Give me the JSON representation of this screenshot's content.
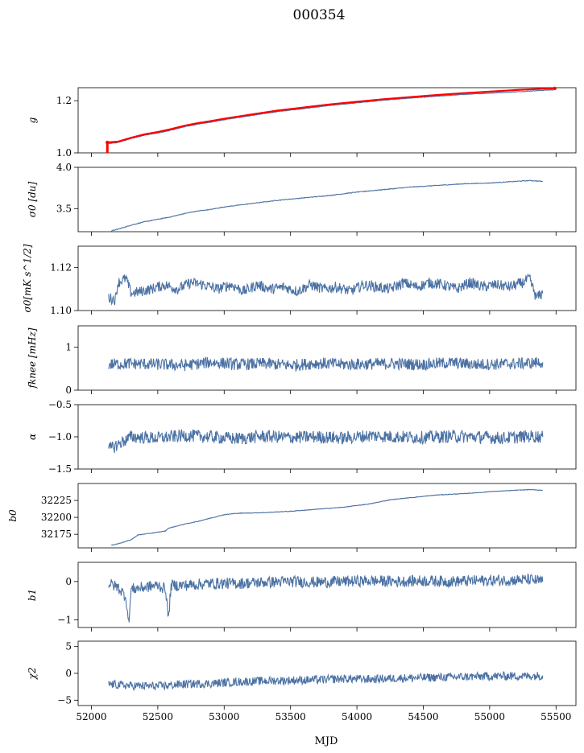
{
  "figure": {
    "title": "000354",
    "xlabel": "MJD",
    "line_color": "#4c72a4",
    "highlight_color": "#ff0000"
  },
  "chart_data": {
    "type": "line",
    "x_range": [
      51900,
      55650
    ],
    "x_ticks": [
      52000,
      52500,
      53000,
      53500,
      54000,
      54500,
      55000,
      55500
    ],
    "x_tick_labels": [
      "52000",
      "52500",
      "53000",
      "53500",
      "54000",
      "54500",
      "55000",
      "55500"
    ],
    "panels": [
      {
        "ylabel": "g",
        "ylim": [
          1.0,
          1.25
        ],
        "yticks": [
          1.0,
          1.2
        ],
        "ytick_labels": [
          "1.0",
          "1.2"
        ],
        "series": [
          {
            "x": [
              52130,
              52200,
              52300,
              52400,
              52500,
              52600,
              52700,
              52800,
              52900,
              53000,
              53200,
              53400,
              53600,
              53800,
              54000,
              54200,
              54400,
              54600,
              54800,
              55000,
              55200,
              55400,
              55480
            ],
            "y": [
              1.035,
              1.04,
              1.055,
              1.068,
              1.076,
              1.087,
              1.1,
              1.11,
              1.118,
              1.127,
              1.143,
              1.158,
              1.17,
              1.182,
              1.192,
              1.202,
              1.21,
              1.217,
              1.224,
              1.229,
              1.234,
              1.24,
              1.242
            ]
          }
        ],
        "highlight": {
          "x": [
            52120,
            52200,
            52300,
            52400,
            52500,
            52600,
            52700,
            52800,
            52900,
            53000,
            53200,
            53400,
            53600,
            53800,
            54000,
            54200,
            54400,
            54600,
            54800,
            55000,
            55200,
            55400,
            55490
          ],
          "y": [
            1.04,
            1.043,
            1.058,
            1.071,
            1.08,
            1.091,
            1.104,
            1.114,
            1.122,
            1.131,
            1.147,
            1.162,
            1.174,
            1.186,
            1.196,
            1.206,
            1.214,
            1.222,
            1.229,
            1.235,
            1.241,
            1.246,
            1.247
          ],
          "drop_x": 52120,
          "drop_y": [
            1.0,
            1.04
          ]
        }
      },
      {
        "ylabel": "σ0 [du]",
        "ylim": [
          3.22,
          4.0
        ],
        "yticks": [
          3.5,
          4.0
        ],
        "ytick_labels": [
          "3.5",
          "4.0"
        ],
        "series": [
          {
            "x": [
              52150,
              52200,
              52300,
              52400,
              52500,
              52600,
              52700,
              52800,
              52900,
              53000,
              53200,
              53400,
              53600,
              53800,
              54000,
              54200,
              54400,
              54600,
              54800,
              55000,
              55200,
              55300,
              55400
            ],
            "y": [
              3.23,
              3.25,
              3.3,
              3.34,
              3.37,
              3.4,
              3.44,
              3.47,
              3.49,
              3.52,
              3.56,
              3.6,
              3.63,
              3.66,
              3.7,
              3.73,
              3.76,
              3.78,
              3.8,
              3.81,
              3.83,
              3.84,
              3.83
            ]
          }
        ]
      },
      {
        "ylabel": "σ0[mK s^1/2]",
        "ylim": [
          1.1,
          1.13
        ],
        "yticks": [
          1.1,
          1.12
        ],
        "ytick_labels": [
          "1.10",
          "1.12"
        ],
        "series": [
          {
            "x": [
              52130,
              52180,
              52200,
              52260,
              52300,
              52380,
              52450,
              52550,
              52650,
              52750,
              52850,
              52950,
              53050,
              53150,
              53250,
              53350,
              53450,
              53550,
              53650,
              53750,
              53850,
              53950,
              54050,
              54150,
              54250,
              54350,
              54450,
              54550,
              54650,
              54750,
              54850,
              54950,
              55050,
              55150,
              55250,
              55300,
              55350,
              55400
            ],
            "y": [
              1.106,
              1.105,
              1.113,
              1.115,
              1.108,
              1.109,
              1.11,
              1.112,
              1.11,
              1.113,
              1.112,
              1.11,
              1.112,
              1.109,
              1.112,
              1.11,
              1.111,
              1.109,
              1.112,
              1.11,
              1.111,
              1.109,
              1.112,
              1.111,
              1.11,
              1.113,
              1.111,
              1.113,
              1.112,
              1.11,
              1.113,
              1.111,
              1.112,
              1.111,
              1.113,
              1.115,
              1.106,
              1.108
            ]
          }
        ]
      },
      {
        "ylabel": "fknee [mHz]",
        "ylim": [
          0,
          1.5
        ],
        "yticks": [
          0,
          1
        ],
        "ytick_labels": [
          "0",
          "1"
        ],
        "series": [
          {
            "x": [
              52130,
              52300,
              52500,
              52700,
              52900,
              53100,
              53300,
              53500,
              53700,
              53900,
              54100,
              54300,
              54500,
              54700,
              54900,
              55100,
              55300,
              55400
            ],
            "y": [
              0.6,
              0.62,
              0.6,
              0.58,
              0.65,
              0.6,
              0.62,
              0.58,
              0.63,
              0.6,
              0.61,
              0.62,
              0.6,
              0.64,
              0.6,
              0.61,
              0.63,
              0.65
            ]
          }
        ]
      },
      {
        "ylabel": "α",
        "ylim": [
          -1.5,
          -0.5
        ],
        "yticks": [
          -1.5,
          -1.0,
          -0.5
        ],
        "ytick_labels": [
          "−1.5",
          "−1.0",
          "−0.5"
        ],
        "series": [
          {
            "x": [
              52130,
              52300,
              52500,
              52700,
              52900,
              53100,
              53300,
              53500,
              53700,
              53900,
              54100,
              54300,
              54500,
              54700,
              54900,
              55100,
              55300,
              55400
            ],
            "y": [
              -1.2,
              -1.0,
              -1.02,
              -0.98,
              -1.0,
              -1.03,
              -0.99,
              -1.01,
              -1.0,
              -1.02,
              -0.98,
              -1.0,
              -1.01,
              -0.99,
              -1.0,
              -1.02,
              -0.99,
              -1.0
            ]
          }
        ]
      },
      {
        "ylabel": "b0",
        "ylim": [
          32155,
          32250
        ],
        "yticks": [
          32175,
          32200,
          32225
        ],
        "ytick_labels": [
          "32175",
          "32200",
          "32225"
        ],
        "series": [
          {
            "x": [
              52150,
              52200,
              52300,
              52350,
              52500,
              52560,
              52580,
              52600,
              52700,
              52800,
              52900,
              53000,
              53100,
              53300,
              53500,
              53700,
              53900,
              54100,
              54250,
              54400,
              54600,
              54800,
              54950,
              55000,
              55200,
              55300,
              55400
            ],
            "y": [
              32159,
              32161,
              32167,
              32174,
              32178,
              32180,
              32184,
              32185,
              32190,
              32194,
              32199,
              32204,
              32206,
              32207,
              32209,
              32212,
              32215,
              32220,
              32226,
              32229,
              32233,
              32235,
              32237,
              32238,
              32240,
              32241,
              32240
            ]
          }
        ]
      },
      {
        "ylabel": "b1",
        "ylim": [
          -1.2,
          0.5
        ],
        "yticks": [
          -1,
          0
        ],
        "ytick_labels": [
          "−1",
          "0"
        ],
        "series": [
          {
            "x": [
              52130,
              52200,
              52260,
              52280,
              52300,
              52400,
              52500,
              52560,
              52580,
              52600,
              52700,
              52900,
              53100,
              53300,
              53500,
              53700,
              53900,
              54100,
              54300,
              54500,
              54700,
              54900,
              55100,
              55300,
              55400
            ],
            "y": [
              -0.05,
              -0.15,
              -0.4,
              -1.1,
              -0.2,
              -0.15,
              -0.1,
              -0.2,
              -1.0,
              -0.1,
              -0.1,
              -0.05,
              -0.05,
              -0.02,
              0.0,
              -0.02,
              0.0,
              0.02,
              0.0,
              0.02,
              0.0,
              0.02,
              0.03,
              0.05,
              0.0
            ]
          }
        ]
      },
      {
        "ylabel": "χ2",
        "ylim": [
          -6,
          6
        ],
        "yticks": [
          -5,
          0,
          5
        ],
        "ytick_labels": [
          "−5",
          "0",
          "5"
        ],
        "series": [
          {
            "x": [
              52130,
              52300,
              52500,
              52700,
              52900,
              53100,
              53300,
              53500,
              53700,
              53900,
              54100,
              54300,
              54500,
              54700,
              54900,
              55100,
              55300,
              55400
            ],
            "y": [
              -2.0,
              -2.3,
              -2.4,
              -2.0,
              -1.9,
              -1.6,
              -1.4,
              -1.3,
              -1.2,
              -1.0,
              -1.1,
              -0.9,
              -0.8,
              -0.7,
              -0.6,
              -0.5,
              -0.5,
              -0.4
            ]
          }
        ]
      }
    ]
  }
}
